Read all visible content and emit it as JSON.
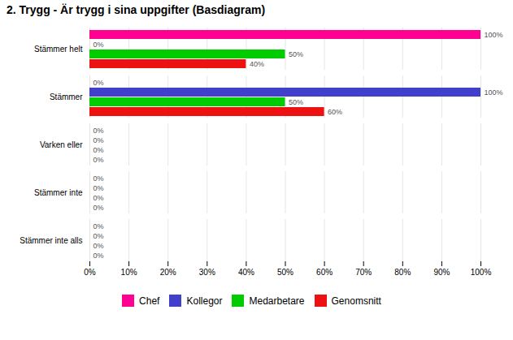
{
  "chart_data": {
    "type": "bar",
    "orientation": "horizontal",
    "title": "2. Trygg - Är trygg i sina uppgifter (Basdiagram)",
    "categories": [
      "Stämmer helt",
      "Stämmer",
      "Varken eller",
      "Stämmer inte",
      "Stämmer inte alls"
    ],
    "series": [
      {
        "name": "Chef",
        "color": "#ff0090",
        "values": [
          100,
          0,
          0,
          0,
          0
        ],
        "value_labels": [
          "100%",
          "0%",
          "0%",
          "0%",
          "0%"
        ]
      },
      {
        "name": "Kollegor",
        "color": "#4040cc",
        "values": [
          0,
          100,
          0,
          0,
          0
        ],
        "value_labels": [
          "0%",
          "100%",
          "0%",
          "0%",
          "0%"
        ]
      },
      {
        "name": "Medarbetare",
        "color": "#00cc00",
        "values": [
          50,
          50,
          0,
          0,
          0
        ],
        "value_labels": [
          "50%",
          "50%",
          "0%",
          "0%",
          "0%"
        ]
      },
      {
        "name": "Genomsnitt",
        "color": "#ee1111",
        "values": [
          40,
          60,
          0,
          0,
          0
        ],
        "value_labels": [
          "40%",
          "60%",
          "0%",
          "0%",
          "0%"
        ]
      }
    ],
    "xlim": [
      0,
      100
    ],
    "xticks": [
      {
        "value": 0,
        "label": "0%"
      },
      {
        "value": 10,
        "label": "10%"
      },
      {
        "value": 20,
        "label": "20%"
      },
      {
        "value": 30,
        "label": "30%"
      },
      {
        "value": 40,
        "label": "40%"
      },
      {
        "value": 50,
        "label": "50%"
      },
      {
        "value": 60,
        "label": "60%"
      },
      {
        "value": 70,
        "label": "70%"
      },
      {
        "value": 80,
        "label": "80%"
      },
      {
        "value": 90,
        "label": "90%"
      },
      {
        "value": 100,
        "label": "100%"
      }
    ],
    "grid": true,
    "data_labels": true,
    "legend": "bottom"
  }
}
